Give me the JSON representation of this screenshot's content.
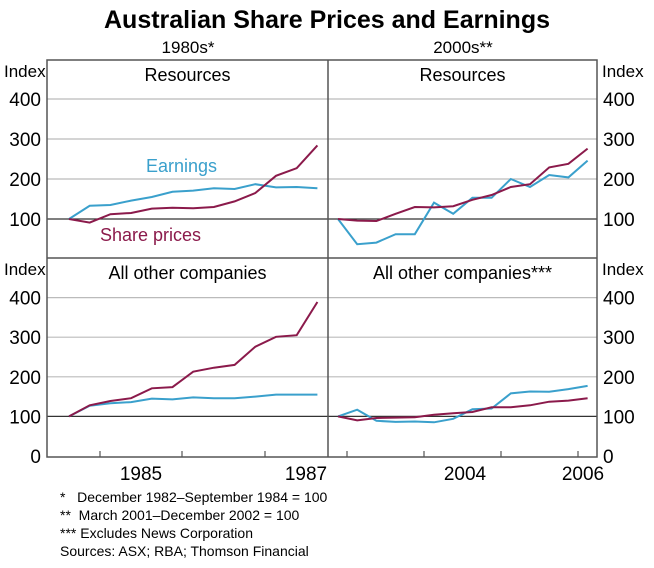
{
  "title": "Australian Share Prices and Earnings",
  "colors": {
    "earnings": "#3aa0cc",
    "share_prices": "#8b1a4b",
    "grid": "#bbbbbb",
    "frame": "#555555"
  },
  "chart_data": [
    {
      "type": "line",
      "title": "Resources",
      "period": "1980s*",
      "ylabel": "Index",
      "ylim": [
        0,
        450
      ],
      "yticks": [
        100,
        200,
        300,
        400
      ],
      "series": [
        {
          "name": "Earnings",
          "values": [
            100,
            133,
            135,
            146,
            155,
            168,
            171,
            177,
            175,
            187,
            179,
            180,
            177
          ]
        },
        {
          "name": "Share prices",
          "values": [
            100,
            91,
            112,
            115,
            126,
            128,
            127,
            130,
            144,
            165,
            208,
            227,
            284
          ]
        }
      ]
    },
    {
      "type": "line",
      "title": "Resources",
      "period": "2000s**",
      "ylabel": "Index",
      "ylim": [
        0,
        450
      ],
      "yticks": [
        100,
        200,
        300,
        400
      ],
      "series": [
        {
          "name": "Earnings",
          "values": [
            100,
            37,
            41,
            62,
            62,
            141,
            113,
            153,
            153,
            200,
            180,
            210,
            204,
            246
          ]
        },
        {
          "name": "Share prices",
          "values": [
            100,
            96,
            95,
            113,
            130,
            129,
            132,
            148,
            160,
            180,
            187,
            229,
            238,
            276
          ]
        }
      ]
    },
    {
      "type": "line",
      "title": "All other companies",
      "ylabel": "Index",
      "ylim": [
        0,
        450
      ],
      "yticks": [
        0,
        100,
        200,
        300,
        400
      ],
      "xticklabels": [
        "1985",
        "1987"
      ],
      "series": [
        {
          "name": "Earnings",
          "values": [
            100,
            127,
            133,
            136,
            145,
            143,
            148,
            146,
            146,
            150,
            155,
            155,
            155
          ]
        },
        {
          "name": "Share prices",
          "values": [
            100,
            128,
            139,
            146,
            171,
            174,
            213,
            223,
            230,
            276,
            301,
            305,
            389
          ]
        }
      ]
    },
    {
      "type": "line",
      "title": "All other companies***",
      "ylabel": "Index",
      "ylim": [
        0,
        450
      ],
      "yticks": [
        0,
        100,
        200,
        300,
        400
      ],
      "xticklabels": [
        "2004",
        "2006"
      ],
      "series": [
        {
          "name": "Earnings",
          "values": [
            100,
            117,
            89,
            86,
            87,
            85,
            94,
            118,
            120,
            158,
            163,
            162,
            169,
            177
          ]
        },
        {
          "name": "Share prices",
          "values": [
            100,
            90,
            96,
            97,
            98,
            104,
            108,
            111,
            123,
            123,
            128,
            137,
            140,
            146
          ]
        }
      ]
    }
  ],
  "legend": {
    "earnings": "Earnings",
    "share_prices": "Share prices"
  },
  "notes": [
    "*   December 1982–September 1984 = 100",
    "**  March 2001–December 2002 = 100",
    "*** Excludes News Corporation",
    "Sources: ASX; RBA; Thomson Financial"
  ]
}
